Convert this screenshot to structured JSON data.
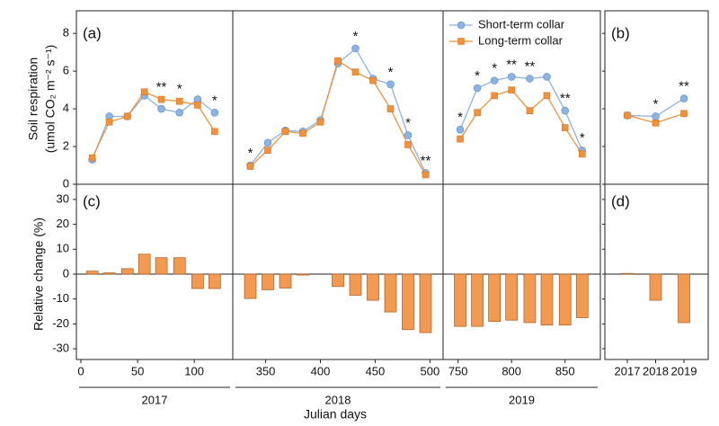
{
  "chart_data": [
    {
      "type": "line",
      "label": "(a)",
      "ylabel": [
        "Soil respiration",
        "(umol CO₂ m⁻² s⁻¹)"
      ],
      "ylim": [
        0,
        9.2
      ],
      "yticks": [
        0,
        2,
        4,
        6,
        8
      ],
      "series": [
        {
          "name": "Short-term collar",
          "color": "#8db3e2",
          "marker": "circle",
          "values": [
            1.3,
            3.6,
            3.6,
            4.7,
            4.0,
            3.8,
            4.5,
            3.8,
            1.0,
            2.2,
            2.85,
            2.8,
            3.4,
            6.4,
            7.2,
            5.6,
            5.3,
            2.6,
            0.6,
            2.9,
            5.1,
            5.5,
            5.7,
            5.6,
            5.7,
            3.9,
            1.8
          ]
        },
        {
          "name": "Long-term collar",
          "color": "#f0923c",
          "marker": "square",
          "values": [
            1.4,
            3.3,
            3.6,
            4.9,
            4.5,
            4.4,
            4.2,
            2.8,
            0.95,
            1.8,
            2.8,
            2.7,
            3.3,
            6.55,
            5.95,
            5.5,
            4.0,
            2.1,
            0.5,
            2.4,
            3.8,
            4.7,
            5.0,
            3.9,
            4.7,
            3.0,
            1.6
          ]
        }
      ],
      "significance": [
        null,
        null,
        null,
        null,
        "**",
        "*",
        null,
        "*",
        "*",
        null,
        null,
        null,
        null,
        null,
        "*",
        null,
        "*",
        "*",
        "**",
        "*",
        "*",
        "*",
        "**",
        "**",
        null,
        "**",
        "*"
      ]
    },
    {
      "type": "bar",
      "label": "(c)",
      "ylabel": "Relative change (%)",
      "xlabel": "Julian days",
      "ylim": [
        -34.3,
        36.1
      ],
      "yticks": [
        -30,
        -20,
        -10,
        0,
        10,
        20,
        30
      ],
      "color": "#f39a52",
      "x": [
        10,
        25,
        41,
        56,
        71,
        87,
        103,
        118,
        336,
        352,
        368,
        384,
        400,
        416,
        432,
        448,
        464,
        480,
        496,
        752,
        768,
        784,
        800,
        817,
        833,
        850,
        866
      ],
      "values": [
        1.2,
        0.5,
        2.2,
        8.0,
        6.6,
        6.6,
        -5.8,
        -5.8,
        -9.8,
        -6.3,
        -5.6,
        -0.4,
        0,
        -5.0,
        -8.5,
        -10.5,
        -15.2,
        -22.3,
        -23.5,
        -21.0,
        -21.0,
        -19.0,
        -18.5,
        -19.5,
        -20.5,
        -20.5,
        -17.5
      ],
      "xsegments": [
        {
          "label": "2017",
          "xlim": [
            -4,
            134
          ],
          "xticks": [
            0,
            50,
            100
          ]
        },
        {
          "label": "2018",
          "xlim": [
            320,
            512
          ],
          "xticks": [
            350,
            400,
            450,
            500
          ]
        },
        {
          "label": "2019",
          "xlim": [
            736,
            883
          ],
          "xticks": [
            750,
            800,
            850
          ]
        }
      ]
    },
    {
      "type": "line",
      "label": "(b)",
      "series": [
        {
          "name": "Short-term collar",
          "color": "#8db3e2",
          "values": [
            3.65,
            3.6,
            4.55
          ]
        },
        {
          "name": "Long-term collar",
          "color": "#f0923c",
          "values": [
            3.65,
            3.25,
            3.75
          ]
        }
      ],
      "significance": [
        null,
        "*",
        "**"
      ]
    },
    {
      "type": "bar",
      "label": "(d)",
      "categories": [
        "2017",
        "2018",
        "2019"
      ],
      "values": [
        0.3,
        -10.5,
        -19.5
      ],
      "color": "#f39a52"
    }
  ]
}
